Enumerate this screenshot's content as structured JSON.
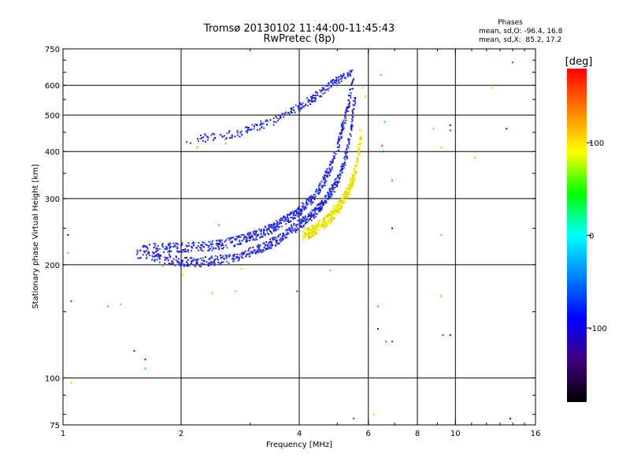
{
  "chart_data": {
    "type": "scatter",
    "title_line1": "Tromsø 20130102 11:44:00-11:45:43",
    "title_line2": "RwPretec (8p)",
    "stats": {
      "header": "Phases",
      "o_line": "mean, sd,O: -96.4, 16.8",
      "x_line": "mean, sd,X:  85.2, 17.2"
    },
    "xlabel": "Frequency [MHz]",
    "ylabel": "Stationary phase Virtual Height [km]",
    "xscale": "log",
    "yscale": "log",
    "xlim": [
      1,
      16
    ],
    "ylim": [
      75,
      750
    ],
    "xticks": [
      1,
      2,
      4,
      6,
      8,
      10,
      16
    ],
    "xtick_labels": [
      "1",
      "2",
      "4",
      "6",
      "8",
      "10",
      "16"
    ],
    "xgrid": [
      2,
      4,
      6,
      8,
      10
    ],
    "yticks": [
      75,
      100,
      200,
      300,
      400,
      500,
      600,
      750
    ],
    "ytick_labels": [
      "75",
      "100",
      "200",
      "300",
      "400",
      "500",
      "600",
      "750"
    ],
    "ygrid": [
      100,
      200,
      300,
      400,
      500,
      600
    ],
    "grid": true,
    "colorbar": {
      "label": "[deg]",
      "range": [
        -180,
        180
      ],
      "ticks": [
        100,
        0,
        -100
      ],
      "tick_labels": [
        "100",
        "0",
        "-100"
      ],
      "colors_top_to_bottom": [
        "#ff0000",
        "#ff8000",
        "#ffff00",
        "#00ff00",
        "#00ffff",
        "#0080ff",
        "#0000ff",
        "#400080",
        "#000000"
      ]
    },
    "series": [
      {
        "mode": "O",
        "phase_deg": -96.4,
        "color": "#3a3ad6",
        "trace_lower": [
          [
            1.55,
            213
          ],
          [
            1.7,
            210
          ],
          [
            1.85,
            207
          ],
          [
            2.0,
            204
          ],
          [
            2.2,
            203
          ],
          [
            2.4,
            205
          ],
          [
            2.6,
            207
          ],
          [
            2.8,
            211
          ],
          [
            3.0,
            216
          ],
          [
            3.2,
            221
          ],
          [
            3.4,
            228
          ],
          [
            3.6,
            236
          ],
          [
            3.8,
            246
          ],
          [
            4.0,
            256
          ],
          [
            4.2,
            265
          ],
          [
            4.4,
            276
          ],
          [
            4.6,
            291
          ],
          [
            4.8,
            310
          ],
          [
            5.0,
            334
          ],
          [
            5.2,
            370
          ],
          [
            5.35,
            420
          ],
          [
            5.45,
            480
          ],
          [
            5.52,
            530
          ],
          [
            5.57,
            580
          ]
        ],
        "trace_upper": [
          [
            1.6,
            220
          ],
          [
            1.8,
            222
          ],
          [
            2.0,
            222
          ],
          [
            2.2,
            223
          ],
          [
            2.5,
            226
          ],
          [
            2.8,
            232
          ],
          [
            3.1,
            240
          ],
          [
            3.4,
            250
          ],
          [
            3.7,
            263
          ],
          [
            4.0,
            278
          ],
          [
            4.3,
            300
          ],
          [
            4.6,
            330
          ],
          [
            4.8,
            362
          ],
          [
            5.0,
            405
          ],
          [
            5.15,
            460
          ],
          [
            5.3,
            520
          ],
          [
            5.42,
            580
          ],
          [
            5.5,
            625
          ]
        ],
        "trace_top": [
          [
            2.05,
            425
          ],
          [
            2.5,
            440
          ],
          [
            2.8,
            445
          ],
          [
            3.0,
            460
          ],
          [
            3.3,
            475
          ],
          [
            3.6,
            490
          ],
          [
            3.8,
            510
          ],
          [
            4.0,
            525
          ],
          [
            4.3,
            550
          ],
          [
            4.6,
            580
          ],
          [
            4.9,
            610
          ],
          [
            5.1,
            625
          ],
          [
            5.3,
            645
          ],
          [
            5.45,
            650
          ]
        ]
      },
      {
        "mode": "X",
        "phase_deg": 85.2,
        "color": "#e6e600",
        "trace": [
          [
            4.1,
            240
          ],
          [
            4.3,
            245
          ],
          [
            4.5,
            252
          ],
          [
            4.7,
            262
          ],
          [
            4.9,
            275
          ],
          [
            5.1,
            290
          ],
          [
            5.3,
            310
          ],
          [
            5.5,
            340
          ],
          [
            5.6,
            370
          ],
          [
            5.7,
            410
          ],
          [
            5.75,
            450
          ]
        ]
      }
    ],
    "noise_points": [
      {
        "x": 1.03,
        "y": 240,
        "color": "#0000ff"
      },
      {
        "x": 1.03,
        "y": 215,
        "color": "#ff8800"
      },
      {
        "x": 1.05,
        "y": 160,
        "color": "#2040ff"
      },
      {
        "x": 1.05,
        "y": 97,
        "color": "#dddd00"
      },
      {
        "x": 1.3,
        "y": 155,
        "color": "#22cc22"
      },
      {
        "x": 1.4,
        "y": 157,
        "color": "#44ee44"
      },
      {
        "x": 1.52,
        "y": 118,
        "color": "#2020cc"
      },
      {
        "x": 1.62,
        "y": 112,
        "color": "#1010aa"
      },
      {
        "x": 1.62,
        "y": 106,
        "color": "#00bbff"
      },
      {
        "x": 1.8,
        "y": 198,
        "color": "#ffaa00"
      },
      {
        "x": 2.02,
        "y": 188,
        "color": "#dddd00"
      },
      {
        "x": 2.2,
        "y": 410,
        "color": "#ff8800"
      },
      {
        "x": 2.3,
        "y": 445,
        "color": "#2040ff"
      },
      {
        "x": 2.4,
        "y": 168,
        "color": "#ffaa00"
      },
      {
        "x": 2.5,
        "y": 255,
        "color": "#00bbff"
      },
      {
        "x": 2.6,
        "y": 420,
        "color": "#66ff00"
      },
      {
        "x": 2.75,
        "y": 170,
        "color": "#ffaa00"
      },
      {
        "x": 2.85,
        "y": 195,
        "color": "#dddd00"
      },
      {
        "x": 3.95,
        "y": 170,
        "color": "#0055ff"
      },
      {
        "x": 4.8,
        "y": 193,
        "color": "#ff8800"
      },
      {
        "x": 5.5,
        "y": 78,
        "color": "#0055ff"
      },
      {
        "x": 5.8,
        "y": 590,
        "color": "#dddd00"
      },
      {
        "x": 5.9,
        "y": 560,
        "color": "#dddd00"
      },
      {
        "x": 6.2,
        "y": 80,
        "color": "#dddd00"
      },
      {
        "x": 6.45,
        "y": 640,
        "color": "#ff8800"
      },
      {
        "x": 6.5,
        "y": 415,
        "color": "#ff2200"
      },
      {
        "x": 6.55,
        "y": 400,
        "color": "#2040ff"
      },
      {
        "x": 6.6,
        "y": 480,
        "color": "#00bbff"
      },
      {
        "x": 6.65,
        "y": 125,
        "color": "#ff4400"
      },
      {
        "x": 6.9,
        "y": 335,
        "color": "#00bbff"
      },
      {
        "x": 6.9,
        "y": 250,
        "color": "#0000ff"
      },
      {
        "x": 6.9,
        "y": 125,
        "color": "#2020cc"
      },
      {
        "x": 6.35,
        "y": 155,
        "color": "#ff6600"
      },
      {
        "x": 6.35,
        "y": 135,
        "color": "#1010aa"
      },
      {
        "x": 8.8,
        "y": 460,
        "color": "#ffaa00"
      },
      {
        "x": 9.2,
        "y": 410,
        "color": "#ffaa00"
      },
      {
        "x": 9.2,
        "y": 240,
        "color": "#ff8800"
      },
      {
        "x": 9.2,
        "y": 165,
        "color": "#ff8800"
      },
      {
        "x": 9.3,
        "y": 130,
        "color": "#0055ff"
      },
      {
        "x": 9.7,
        "y": 470,
        "color": "#1010aa"
      },
      {
        "x": 9.7,
        "y": 455,
        "color": "#2040ff"
      },
      {
        "x": 9.7,
        "y": 130,
        "color": "#1010aa"
      },
      {
        "x": 11.2,
        "y": 385,
        "color": "#ffaa00"
      },
      {
        "x": 12.4,
        "y": 590,
        "color": "#dddd00"
      },
      {
        "x": 13.5,
        "y": 460,
        "color": "#1010aa"
      },
      {
        "x": 14.0,
        "y": 690,
        "color": "#2040ff"
      },
      {
        "x": 13.8,
        "y": 78,
        "color": "#0000ff"
      }
    ]
  }
}
